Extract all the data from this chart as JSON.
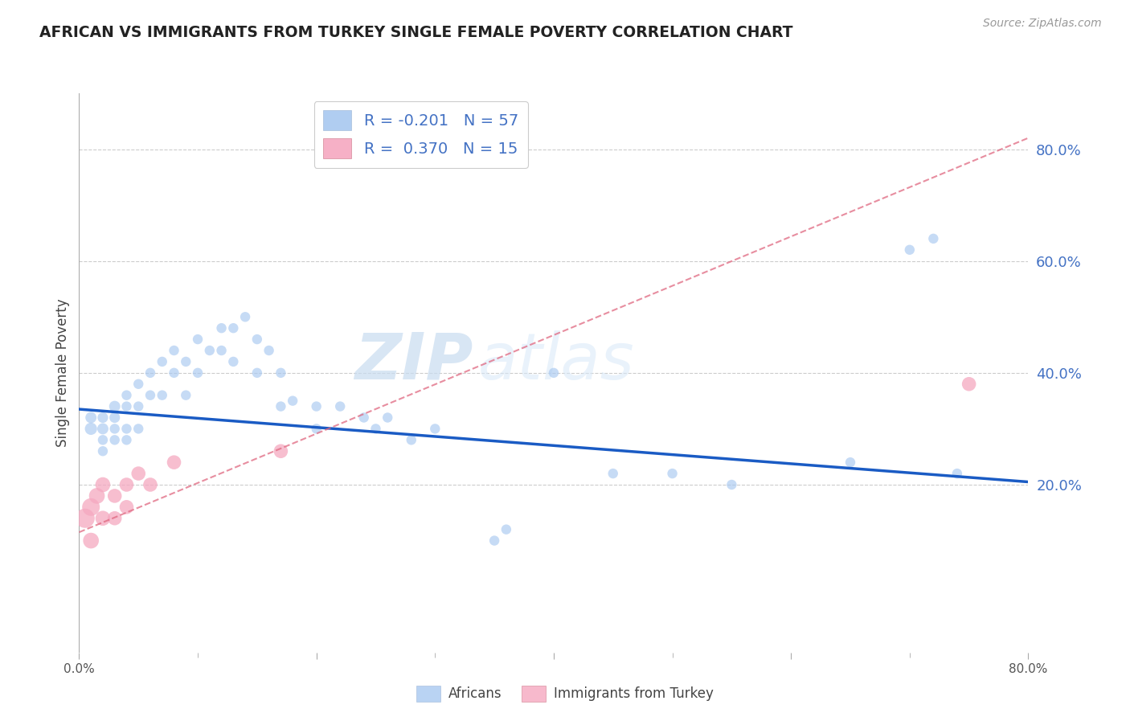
{
  "title": "AFRICAN VS IMMIGRANTS FROM TURKEY SINGLE FEMALE POVERTY CORRELATION CHART",
  "source": "Source: ZipAtlas.com",
  "ylabel": "Single Female Poverty",
  "right_yticks": [
    0.8,
    0.6,
    0.4,
    0.2
  ],
  "xlim": [
    0.0,
    0.8
  ],
  "ylim": [
    -0.1,
    0.9
  ],
  "africans_R": -0.201,
  "africans_N": 57,
  "turkey_R": 0.37,
  "turkey_N": 15,
  "africans_color": "#A8C8F0",
  "turkey_color": "#F5A8C0",
  "trend_african_color": "#1A5BC4",
  "trend_turkey_color": "#E06880",
  "watermark_zip": "ZIP",
  "watermark_atlas": "atlas",
  "africans_x": [
    0.01,
    0.01,
    0.02,
    0.02,
    0.02,
    0.02,
    0.03,
    0.03,
    0.03,
    0.03,
    0.04,
    0.04,
    0.04,
    0.04,
    0.05,
    0.05,
    0.05,
    0.06,
    0.06,
    0.07,
    0.07,
    0.08,
    0.08,
    0.09,
    0.09,
    0.1,
    0.1,
    0.11,
    0.12,
    0.12,
    0.13,
    0.13,
    0.14,
    0.15,
    0.15,
    0.16,
    0.17,
    0.17,
    0.18,
    0.2,
    0.2,
    0.22,
    0.24,
    0.25,
    0.26,
    0.28,
    0.3,
    0.35,
    0.36,
    0.4,
    0.45,
    0.5,
    0.55,
    0.65,
    0.7,
    0.72,
    0.74
  ],
  "africans_y": [
    0.3,
    0.32,
    0.3,
    0.32,
    0.28,
    0.26,
    0.34,
    0.32,
    0.28,
    0.3,
    0.36,
    0.34,
    0.3,
    0.28,
    0.38,
    0.34,
    0.3,
    0.4,
    0.36,
    0.42,
    0.36,
    0.44,
    0.4,
    0.42,
    0.36,
    0.46,
    0.4,
    0.44,
    0.48,
    0.44,
    0.48,
    0.42,
    0.5,
    0.46,
    0.4,
    0.44,
    0.4,
    0.34,
    0.35,
    0.34,
    0.3,
    0.34,
    0.32,
    0.3,
    0.32,
    0.28,
    0.3,
    0.1,
    0.12,
    0.4,
    0.22,
    0.22,
    0.2,
    0.24,
    0.62,
    0.64,
    0.22
  ],
  "africans_size": [
    120,
    100,
    100,
    90,
    80,
    80,
    100,
    90,
    80,
    80,
    80,
    80,
    80,
    80,
    80,
    80,
    80,
    80,
    80,
    80,
    80,
    80,
    80,
    80,
    80,
    80,
    80,
    80,
    80,
    80,
    80,
    80,
    80,
    80,
    80,
    80,
    80,
    80,
    80,
    80,
    80,
    80,
    80,
    80,
    80,
    80,
    80,
    80,
    80,
    80,
    80,
    80,
    80,
    80,
    80,
    80,
    80
  ],
  "turkey_x": [
    0.005,
    0.01,
    0.01,
    0.015,
    0.02,
    0.02,
    0.03,
    0.03,
    0.04,
    0.04,
    0.05,
    0.06,
    0.08,
    0.17,
    0.75
  ],
  "turkey_y": [
    0.14,
    0.16,
    0.1,
    0.18,
    0.14,
    0.2,
    0.18,
    0.14,
    0.2,
    0.16,
    0.22,
    0.2,
    0.24,
    0.26,
    0.38
  ],
  "turkey_size": [
    300,
    250,
    200,
    200,
    180,
    180,
    160,
    160,
    160,
    160,
    160,
    160,
    160,
    160,
    160
  ],
  "african_trend_x0": 0.0,
  "african_trend_y0": 0.335,
  "african_trend_x1": 0.8,
  "african_trend_y1": 0.205,
  "turkey_trend_x0": 0.0,
  "turkey_trend_y0": 0.115,
  "turkey_trend_x1": 0.8,
  "turkey_trend_y1": 0.82
}
